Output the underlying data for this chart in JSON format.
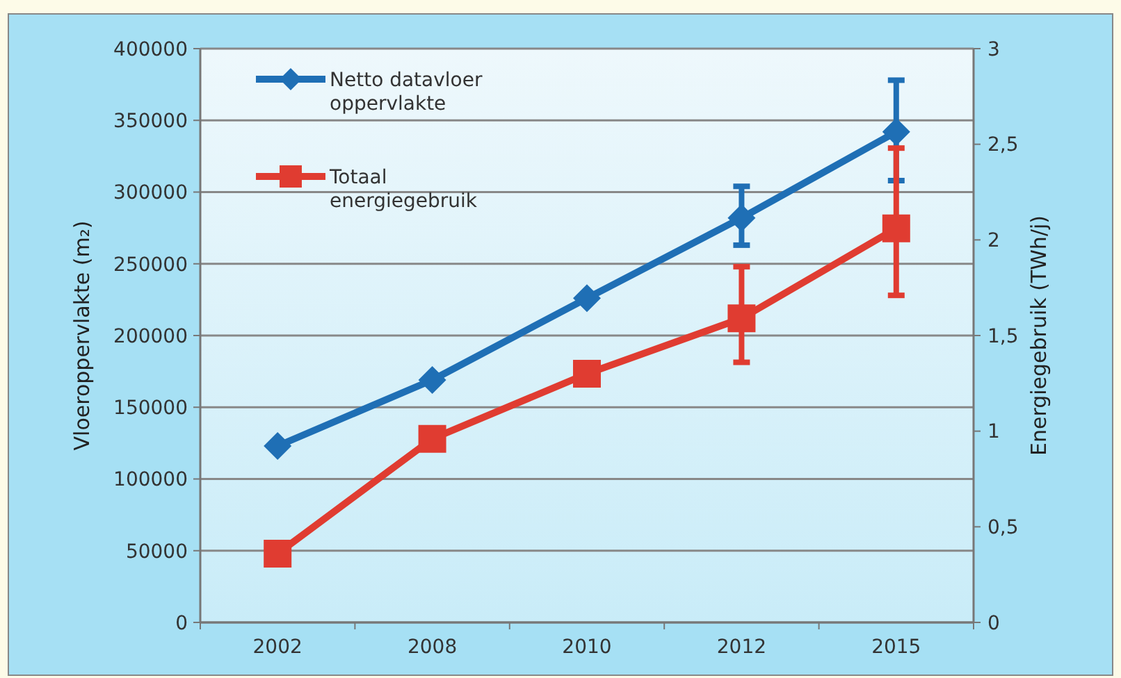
{
  "chart_data": {
    "type": "line",
    "categories": [
      "2002",
      "2008",
      "2010",
      "2012",
      "2015"
    ],
    "ylabel": "Vloeroppervlakte (m₂)",
    "y2label": "Energiegebruik (TWh/j)",
    "ylim": [
      0,
      400000
    ],
    "yticks": [
      0,
      50000,
      100000,
      150000,
      200000,
      250000,
      300000,
      350000,
      400000
    ],
    "y2lim": [
      0,
      3
    ],
    "y2ticks": [
      0,
      {
        "value": 0.5,
        "label": "0,5"
      },
      1,
      {
        "value": 1.5,
        "label": "1,5"
      },
      2,
      {
        "value": 2.5,
        "label": "2,5"
      },
      3
    ],
    "grid": "y",
    "legend": "top left",
    "line_style": "solid",
    "series": [
      {
        "name": "Netto datavloer oppervlakte",
        "color": "#1f6fb5",
        "marker": "diamond",
        "values": [
          123000,
          169000,
          226000,
          282000,
          342000
        ],
        "errors": [
          null,
          null,
          null,
          [
            263000,
            304000
          ],
          [
            308000,
            378000
          ]
        ]
      },
      {
        "name": "Totaal energiegebruik",
        "color": "#e03c31",
        "marker": "square",
        "axis": "y2",
        "values": [
          0.36,
          0.96,
          1.3,
          1.59,
          2.06
        ],
        "errors": [
          null,
          null,
          null,
          [
            1.36,
            1.86
          ],
          [
            1.71,
            2.48
          ]
        ]
      }
    ]
  }
}
